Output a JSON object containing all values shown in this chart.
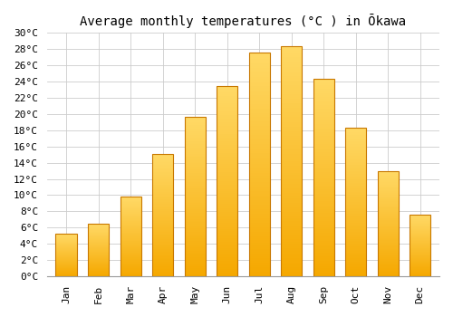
{
  "title": "Average monthly temperatures (°C ) in Ōkawa",
  "months": [
    "Jan",
    "Feb",
    "Mar",
    "Apr",
    "May",
    "Jun",
    "Jul",
    "Aug",
    "Sep",
    "Oct",
    "Nov",
    "Dec"
  ],
  "values": [
    5.3,
    6.5,
    9.8,
    15.1,
    19.6,
    23.4,
    27.6,
    28.4,
    24.3,
    18.3,
    13.0,
    7.6
  ],
  "bar_color_bottom": "#F5A800",
  "bar_color_top": "#FFD966",
  "bar_edge_color": "#C87800",
  "ylim": [
    0,
    30
  ],
  "yticks": [
    0,
    2,
    4,
    6,
    8,
    10,
    12,
    14,
    16,
    18,
    20,
    22,
    24,
    26,
    28,
    30
  ],
  "background_color": "#FFFFFF",
  "grid_color": "#CCCCCC",
  "title_fontsize": 10,
  "tick_fontsize": 8,
  "font_family": "monospace"
}
